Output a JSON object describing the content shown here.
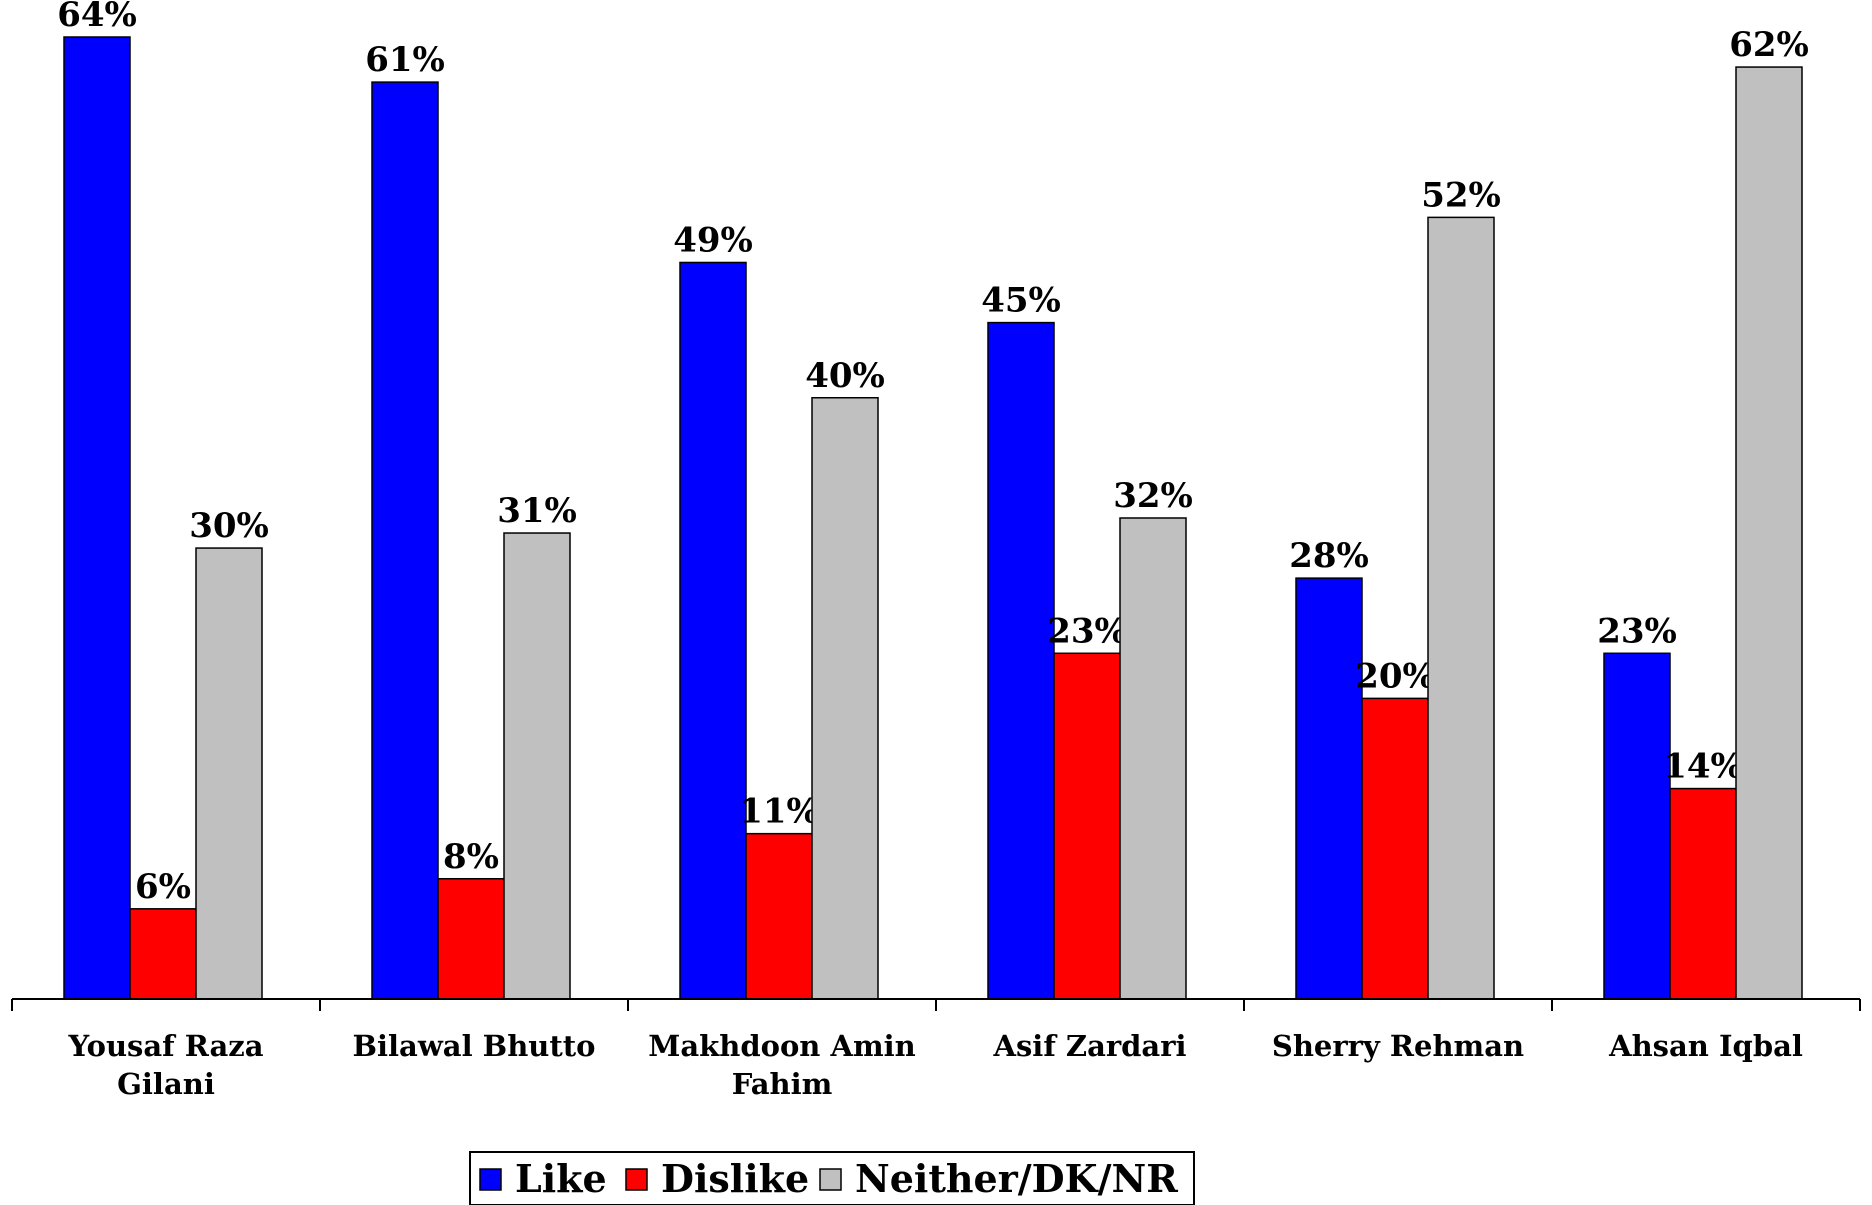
{
  "chart_data": {
    "type": "bar",
    "title": "",
    "categories": [
      "Yousaf Raza Gilani",
      "Bilawal Bhutto",
      "Makhdoon Amin Fahim",
      "Asif Zardari",
      "Sherry Rehman",
      "Ahsan Iqbal"
    ],
    "category_lines": [
      [
        "Yousaf Raza",
        "Gilani"
      ],
      [
        "Bilawal Bhutto"
      ],
      [
        "Makhdoon Amin",
        "Fahim"
      ],
      [
        "Asif Zardari"
      ],
      [
        "Sherry Rehman"
      ],
      [
        "Ahsan Iqbal"
      ]
    ],
    "series": [
      {
        "name": "Like",
        "color": "#0000ff",
        "values": [
          64,
          61,
          49,
          45,
          28,
          23
        ],
        "labels": [
          "64%",
          "61%",
          "49%",
          "45%",
          "28%",
          "23%"
        ]
      },
      {
        "name": "Dislike",
        "color": "#ff0000",
        "values": [
          6,
          8,
          11,
          23,
          20,
          14
        ],
        "labels": [
          "6%",
          "8%",
          "11%",
          "23%",
          "20%",
          "14%"
        ]
      },
      {
        "name": "Neither/DK/NR",
        "color": "#c0c0c0",
        "values": [
          30,
          31,
          40,
          32,
          52,
          62
        ],
        "labels": [
          "30%",
          "31%",
          "40%",
          "32%",
          "52%",
          "62%"
        ]
      }
    ],
    "ylim": [
      0,
      66
    ],
    "grid": false,
    "legend": "bottom"
  }
}
